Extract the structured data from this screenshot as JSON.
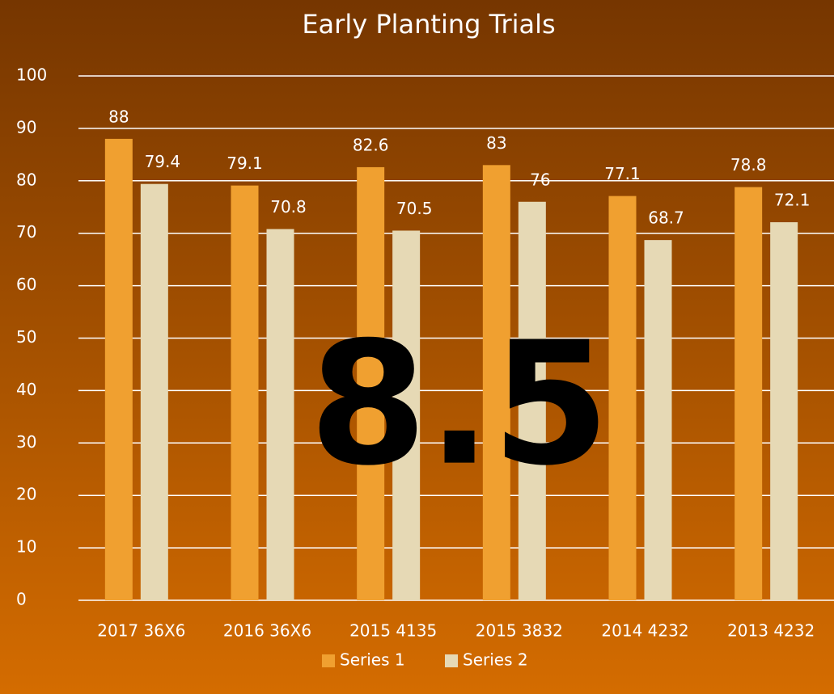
{
  "chart_data": {
    "type": "bar",
    "title": "Early Planting Trials",
    "categories": [
      "2017 36X6",
      "2016 36X6",
      "2015 4135",
      "2015 3832",
      "2014 4232",
      "2013 4232"
    ],
    "series": [
      {
        "name": "Series 1",
        "color": "#f0a030",
        "values": [
          88,
          79.1,
          82.6,
          83,
          77.1,
          78.8
        ]
      },
      {
        "name": "Series 2",
        "color": "#e6d9b5",
        "values": [
          79.4,
          70.8,
          70.5,
          76,
          68.7,
          72.1
        ]
      }
    ],
    "ylim": [
      0,
      100
    ],
    "yticks": [
      0,
      10,
      20,
      30,
      40,
      50,
      60,
      70,
      80,
      90,
      100
    ],
    "grid": true,
    "legend": "bottom",
    "annotation": "8.5"
  }
}
